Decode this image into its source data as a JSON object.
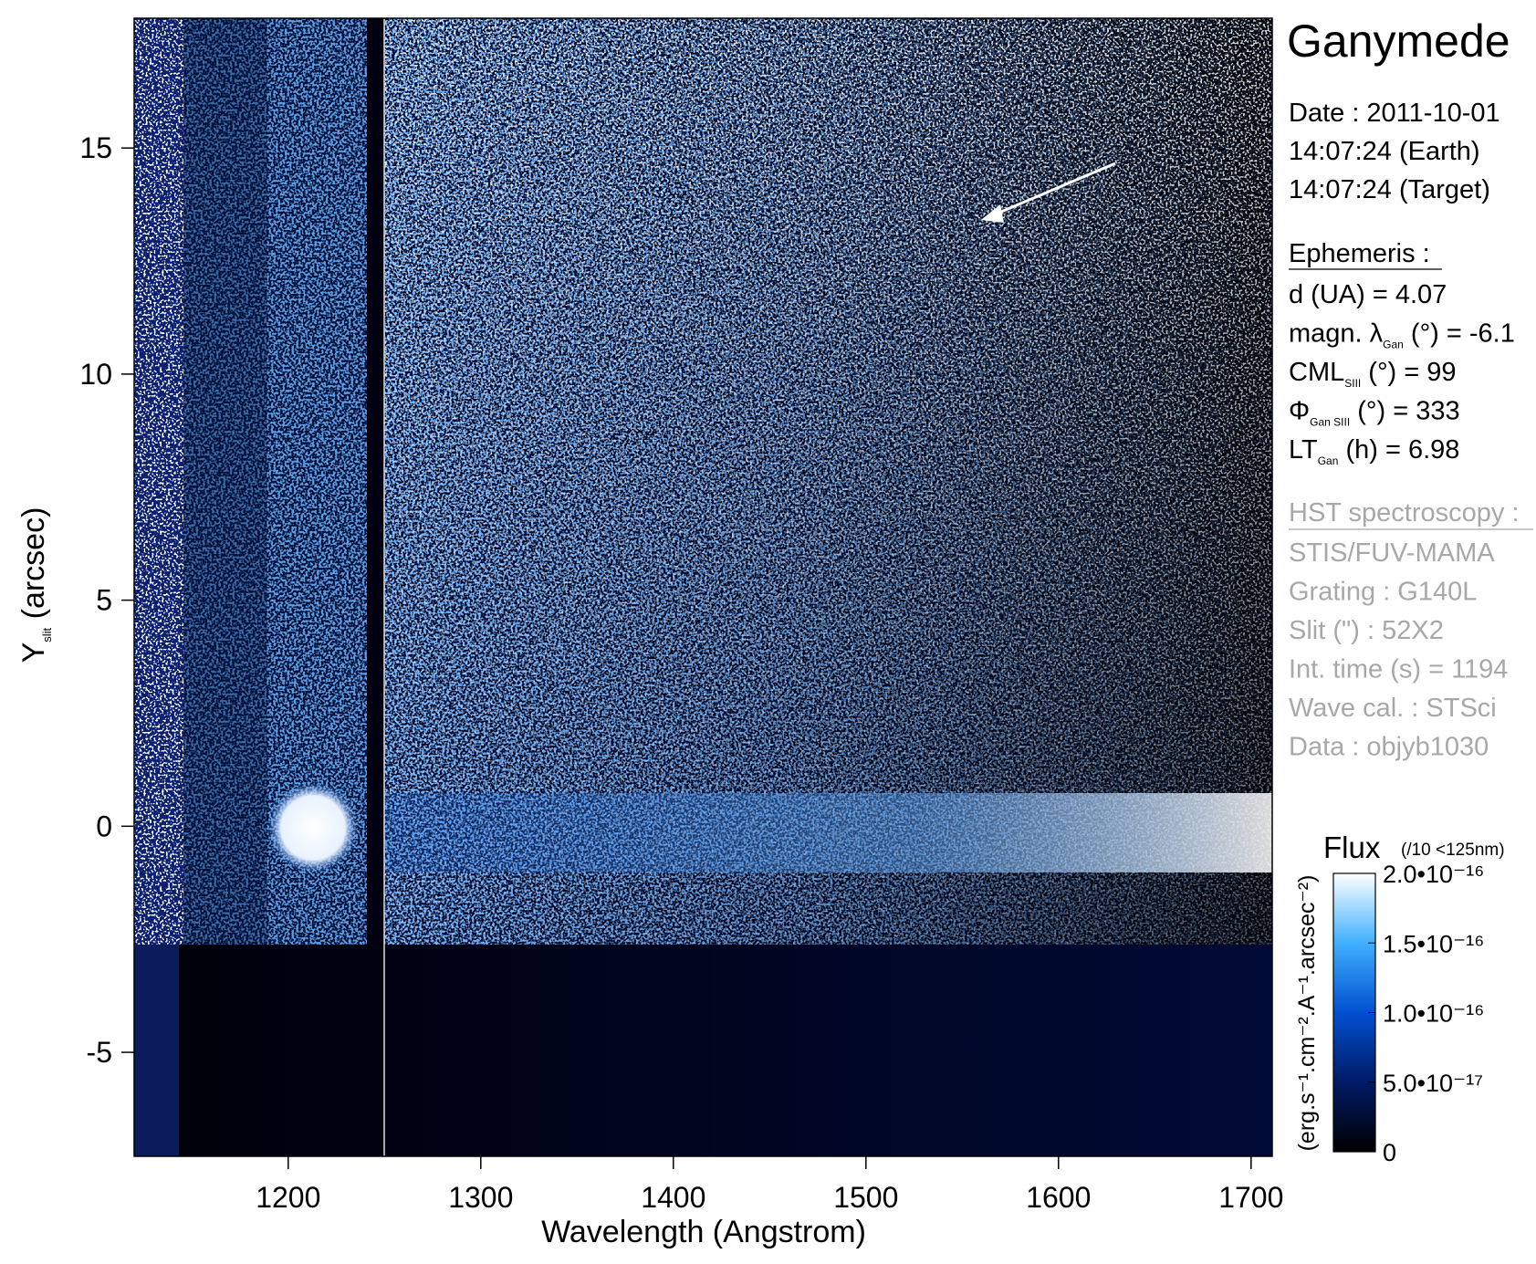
{
  "chart_data": {
    "type": "spectral-image",
    "x_label": "Wavelength (Angstrom)",
    "y_label": {
      "main": "Y",
      "sub": "slit",
      "rest": " (arcsec)"
    },
    "xlim": [
      1120,
      1711
    ],
    "xticks": [
      1200,
      1300,
      1400,
      1500,
      1600,
      1700
    ],
    "ylim": [
      -7.3,
      17.87
    ],
    "yticks": [
      -5,
      0,
      5,
      10,
      15
    ],
    "panel": {
      "title": "Ganymede",
      "date": [
        "Date : 2011-10-01",
        "14:07:24 (Earth)",
        "14:07:24 (Target)"
      ],
      "ephemeris_title": "Ephemeris :",
      "ephemeris": [
        {
          "main": "d (UA)     = 4.07"
        },
        {
          "main": "magn. λ",
          "sub": "Gan",
          "rest": " (°)  = -6.1"
        },
        {
          "main": "CML",
          "sub": "SIII",
          "rest": " (°) = 99"
        },
        {
          "main": "Φ",
          "sub": "Gan SIII",
          "rest": " (°) = 333"
        },
        {
          "main": "LT",
          "sub": "Gan",
          "rest": " (h) = 6.98"
        }
      ],
      "hst_title": "HST spectroscopy :",
      "hst": [
        "STIS/FUV-MAMA",
        "Grating : G140L",
        "Slit (\") : 52X2",
        "Int. time (s) = 1194",
        "Wave cal. : STSci",
        "Data : objyb1030"
      ]
    },
    "colorbar": {
      "title": "Flux",
      "note": "(/10 <125nm)",
      "label": "(erg.s⁻¹.cm⁻².A⁻¹.arcsec⁻²)",
      "clim": [
        0,
        2e-16
      ],
      "ticks": [
        0,
        {
          "value": 5e-17,
          "label": "5.0•10⁻¹⁷"
        },
        {
          "value": 1e-16,
          "label": "1.0•10⁻¹⁶"
        },
        {
          "value": 1.5e-16,
          "label": "1.5•10⁻¹⁶"
        },
        {
          "value": 2e-16,
          "label": "2.0•10⁻¹⁶"
        }
      ],
      "colors": [
        "#000000",
        "#001a66",
        "#0050d0",
        "#40b0ff",
        "#ffffff"
      ]
    }
  }
}
